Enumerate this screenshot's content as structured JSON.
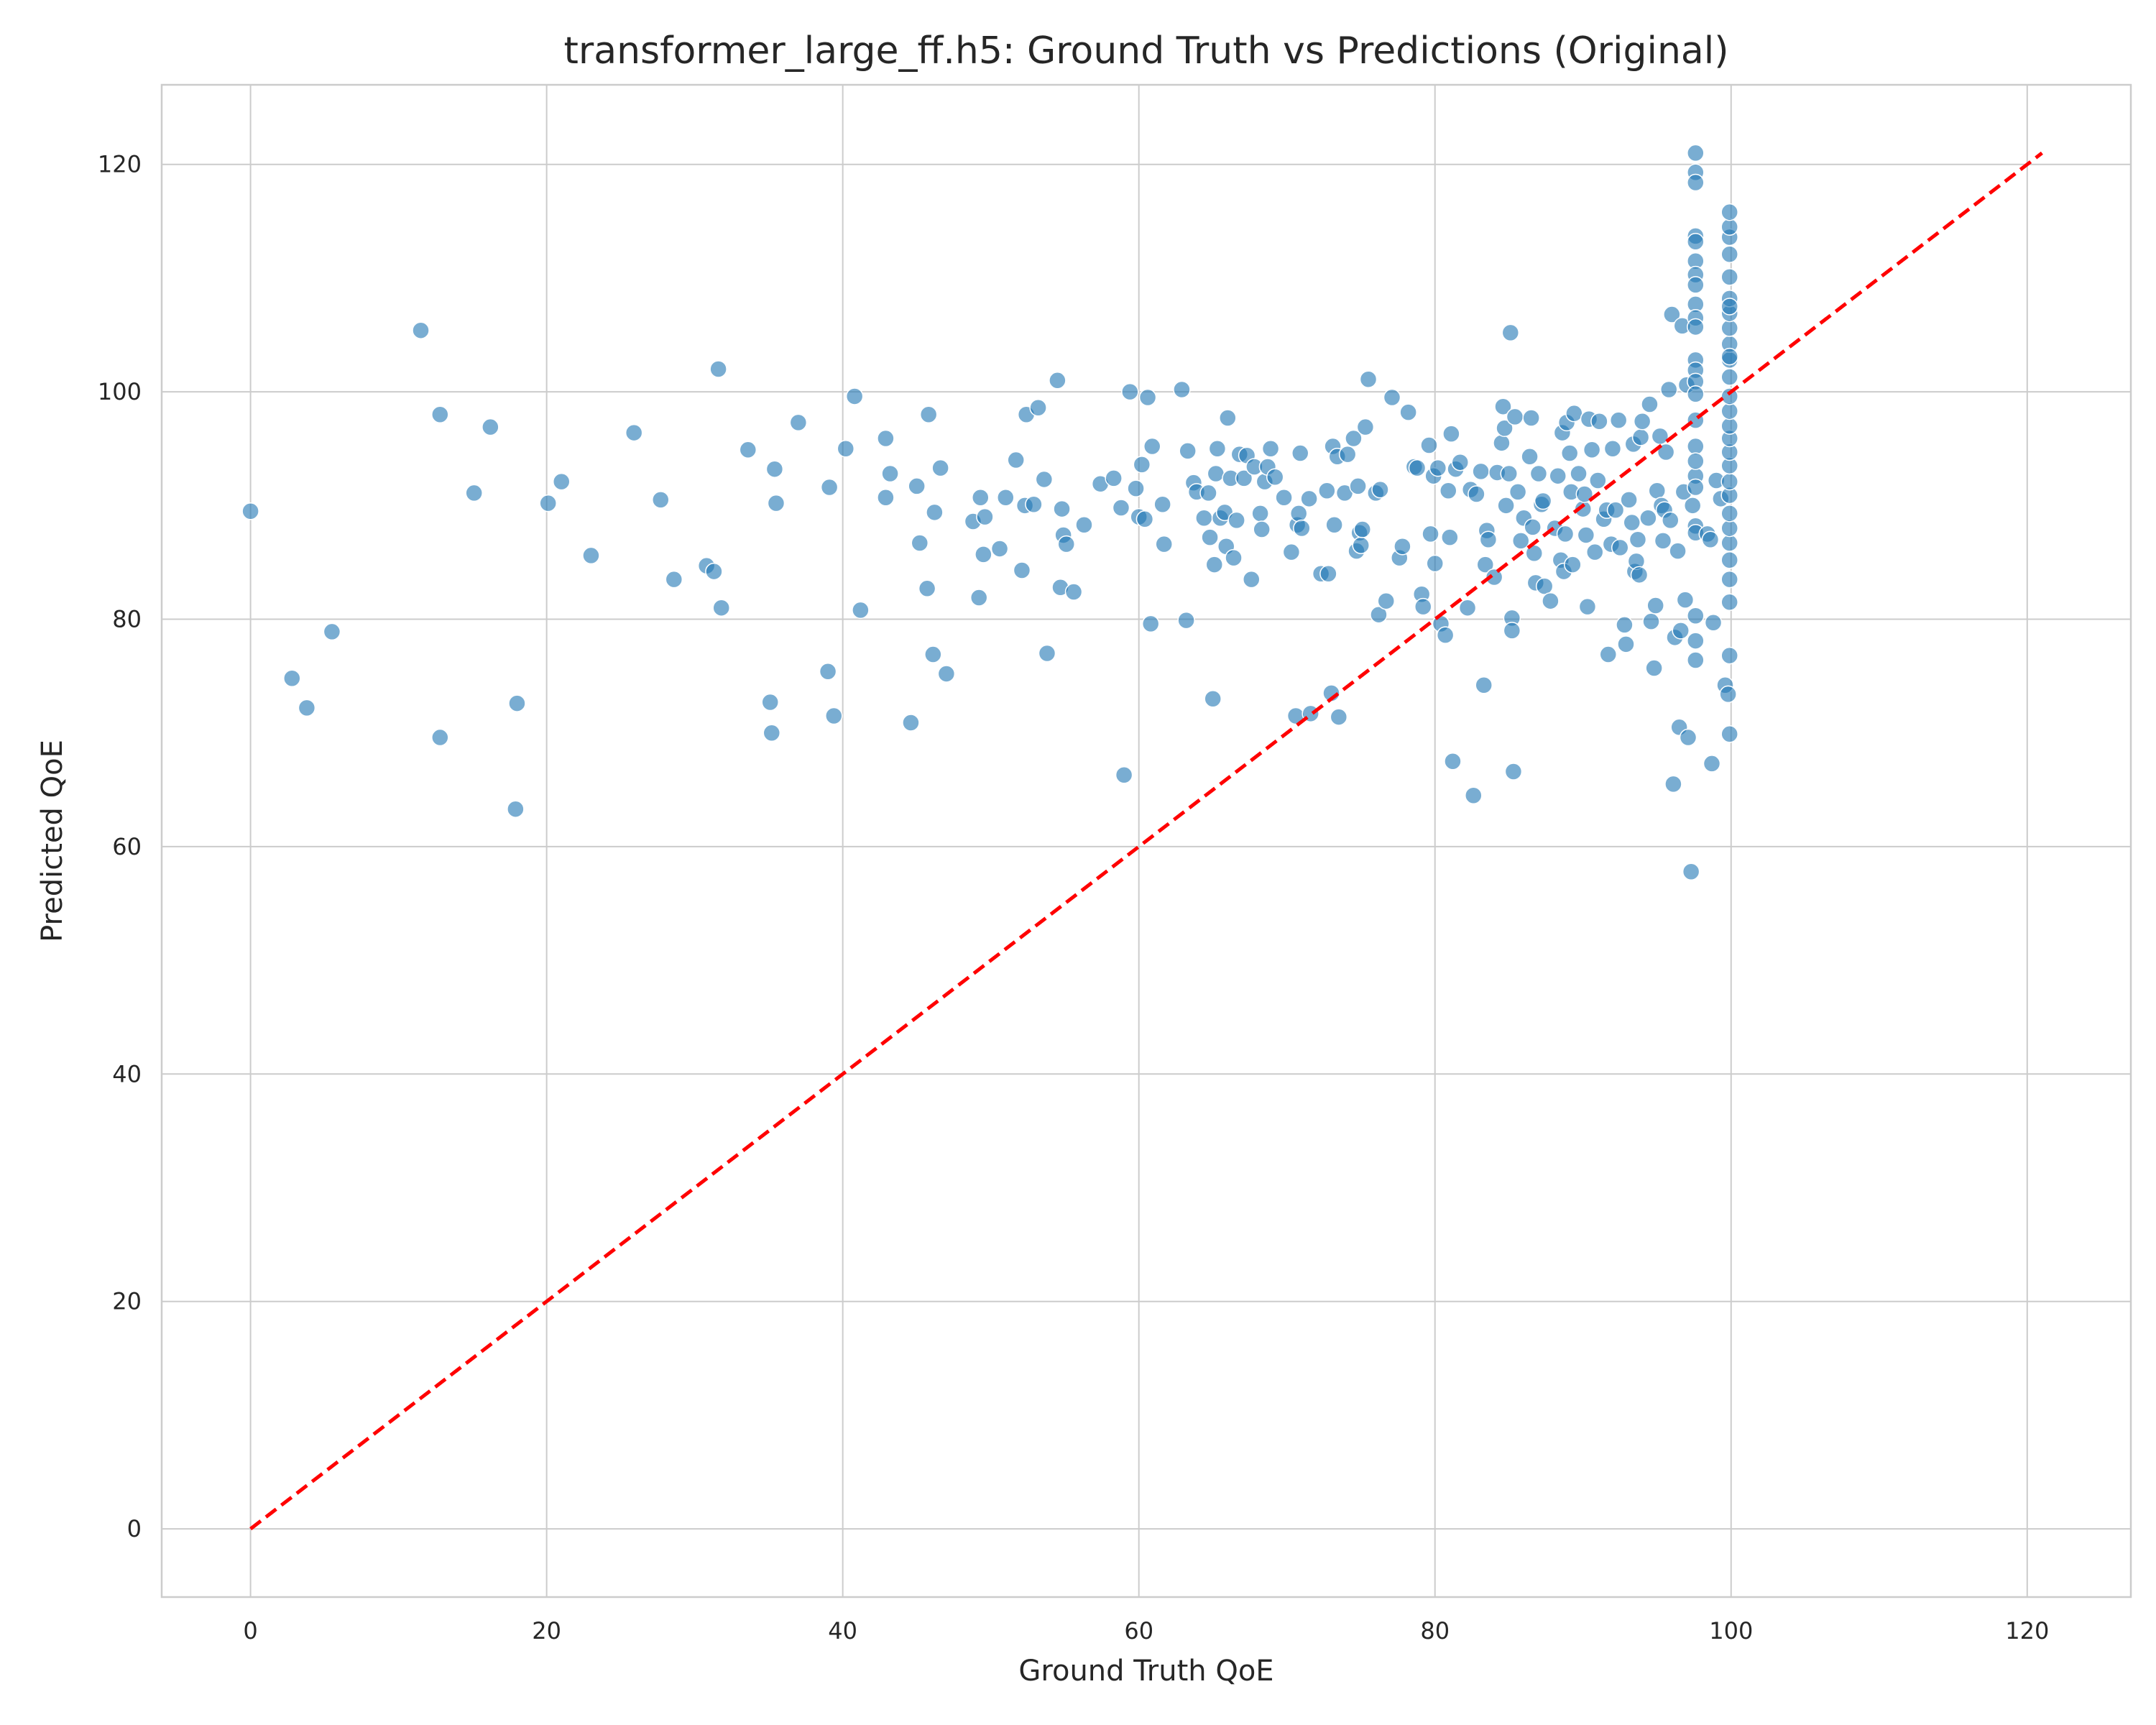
{
  "chart_data": {
    "type": "scatter",
    "title": "transformer_large_ff.h5: Ground Truth vs Predictions (Original)",
    "xlabel": "Ground Truth QoE",
    "ylabel": "Predicted QoE",
    "xlim": [
      -6,
      127
    ],
    "ylim": [
      -6,
      127
    ],
    "xticks": [
      0,
      20,
      40,
      60,
      80,
      100,
      120
    ],
    "yticks": [
      0,
      20,
      40,
      60,
      80,
      100,
      120
    ],
    "grid": true,
    "point_color": "#1f77b4",
    "reference_line": {
      "style": "dashed",
      "color": "#ff0000",
      "x": [
        0,
        121
      ],
      "y": [
        0,
        121
      ]
    },
    "points": [
      [
        0,
        89.5
      ],
      [
        2.8,
        74.8
      ],
      [
        3.8,
        72.2
      ],
      [
        5.5,
        78.9
      ],
      [
        11.5,
        105.4
      ],
      [
        12.8,
        98
      ],
      [
        12.8,
        69.6
      ],
      [
        15.1,
        91.1
      ],
      [
        16.2,
        96.9
      ],
      [
        17.9,
        63.3
      ],
      [
        18.0,
        72.6
      ],
      [
        20.1,
        90.2
      ],
      [
        21.0,
        92.1
      ],
      [
        23.0,
        85.6
      ],
      [
        25.9,
        96.4
      ],
      [
        27.7,
        90.5
      ],
      [
        28.6,
        83.5
      ],
      [
        30.8,
        84.7
      ],
      [
        31.3,
        84.2
      ],
      [
        31.6,
        102
      ],
      [
        31.8,
        81
      ],
      [
        33.6,
        94.9
      ],
      [
        35.1,
        72.7
      ],
      [
        35.2,
        70.0
      ],
      [
        35.4,
        93.2
      ],
      [
        35.5,
        90.2
      ],
      [
        37.0,
        97.3
      ],
      [
        39.0,
        75.4
      ],
      [
        39.1,
        91.6
      ],
      [
        39.4,
        71.5
      ],
      [
        40.2,
        95
      ],
      [
        40.8,
        99.6
      ],
      [
        41.2,
        80.8
      ],
      [
        42.9,
        95.9
      ],
      [
        42.9,
        90.7
      ],
      [
        43.2,
        92.8
      ],
      [
        44.6,
        70.9
      ],
      [
        45.0,
        91.7
      ],
      [
        45.2,
        86.7
      ],
      [
        45.7,
        82.7
      ],
      [
        45.8,
        98
      ],
      [
        46.1,
        76.9
      ],
      [
        46.2,
        89.4
      ],
      [
        46.6,
        93.3
      ],
      [
        47.0,
        75.2
      ],
      [
        48.8,
        88.6
      ],
      [
        49.2,
        81.9
      ],
      [
        49.3,
        90.7
      ],
      [
        49.5,
        85.7
      ],
      [
        49.6,
        89.0
      ],
      [
        50.6,
        86.2
      ],
      [
        51.0,
        90.7
      ],
      [
        51.7,
        94
      ],
      [
        52.1,
        84.3
      ],
      [
        52.3,
        90.0
      ],
      [
        52.4,
        98
      ],
      [
        52.9,
        90.1
      ],
      [
        53.2,
        98.6
      ],
      [
        53.6,
        92.3
      ],
      [
        53.8,
        77
      ],
      [
        54.5,
        101
      ],
      [
        54.7,
        82.8
      ],
      [
        54.8,
        89.7
      ],
      [
        54.9,
        87.4
      ],
      [
        55.1,
        86.6
      ],
      [
        55.6,
        82.4
      ],
      [
        56.3,
        88.3
      ],
      [
        57.4,
        91.9
      ],
      [
        58.3,
        92.4
      ],
      [
        58.8,
        89.8
      ],
      [
        59.0,
        66.3
      ],
      [
        59.4,
        100
      ],
      [
        59.8,
        91.5
      ],
      [
        60.0,
        89.0
      ],
      [
        60.2,
        93.6
      ],
      [
        60.4,
        88.8
      ],
      [
        60.6,
        99.5
      ],
      [
        60.8,
        79.6
      ],
      [
        60.9,
        95.2
      ],
      [
        61.6,
        90.1
      ],
      [
        61.7,
        86.6
      ],
      [
        62.9,
        100.2
      ],
      [
        63.2,
        79.9
      ],
      [
        63.3,
        94.8
      ],
      [
        63.7,
        92.0
      ],
      [
        63.9,
        91.2
      ],
      [
        64.4,
        88.9
      ],
      [
        64.7,
        91.1
      ],
      [
        64.8,
        87.2
      ],
      [
        65.0,
        73.0
      ],
      [
        65.1,
        84.8
      ],
      [
        65.2,
        92.8
      ],
      [
        65.3,
        95
      ],
      [
        65.5,
        88.9
      ],
      [
        65.8,
        89.4
      ],
      [
        65.9,
        86.4
      ],
      [
        66.0,
        97.7
      ],
      [
        66.2,
        92.4
      ],
      [
        66.4,
        85.4
      ],
      [
        66.6,
        88.7
      ],
      [
        66.8,
        94.5
      ],
      [
        67.1,
        92.4
      ],
      [
        67.3,
        94.4
      ],
      [
        67.6,
        83.5
      ],
      [
        67.8,
        93.4
      ],
      [
        68.2,
        89.3
      ],
      [
        68.3,
        87.9
      ],
      [
        68.5,
        92.1
      ],
      [
        68.7,
        93.4
      ],
      [
        68.9,
        95
      ],
      [
        69.2,
        92.5
      ],
      [
        69.8,
        90.7
      ],
      [
        70.3,
        85.9
      ],
      [
        70.6,
        71.5
      ],
      [
        70.7,
        88.3
      ],
      [
        70.8,
        89.3
      ],
      [
        70.9,
        94.6
      ],
      [
        71.0,
        88.0
      ],
      [
        71.5,
        90.6
      ],
      [
        71.6,
        71.7
      ],
      [
        72.3,
        84
      ],
      [
        72.7,
        91.3
      ],
      [
        72.8,
        84
      ],
      [
        73.0,
        73.5
      ],
      [
        73.1,
        95.2
      ],
      [
        73.2,
        88.3
      ],
      [
        73.4,
        94.3
      ],
      [
        73.5,
        71.4
      ],
      [
        73.9,
        91.1
      ],
      [
        74.1,
        94.5
      ],
      [
        74.5,
        95.9
      ],
      [
        74.7,
        86.0
      ],
      [
        74.8,
        91.7
      ],
      [
        74.9,
        87.6
      ],
      [
        75.0,
        86.5
      ],
      [
        75.1,
        87.9
      ],
      [
        75.3,
        96.9
      ],
      [
        75.5,
        101.1
      ],
      [
        76.0,
        91.1
      ],
      [
        76.2,
        80.4
      ],
      [
        76.3,
        91.4
      ],
      [
        76.7,
        81.6
      ],
      [
        77.1,
        99.5
      ],
      [
        77.6,
        85.4
      ],
      [
        77.8,
        86.4
      ],
      [
        78.2,
        98.2
      ],
      [
        78.6,
        93.4
      ],
      [
        78.8,
        93.3
      ],
      [
        79.1,
        82.2
      ],
      [
        79.2,
        81.1
      ],
      [
        79.6,
        95.3
      ],
      [
        79.7,
        87.5
      ],
      [
        79.9,
        92.6
      ],
      [
        80.0,
        84.9
      ],
      [
        80.2,
        93.3
      ],
      [
        80.4,
        79.6
      ],
      [
        80.7,
        78.6
      ],
      [
        80.9,
        91.3
      ],
      [
        81.0,
        87.2
      ],
      [
        81.1,
        96.3
      ],
      [
        81.2,
        67.5
      ],
      [
        81.4,
        93.2
      ],
      [
        81.7,
        93.8
      ],
      [
        82.2,
        81
      ],
      [
        82.4,
        91.4
      ],
      [
        82.6,
        64.5
      ],
      [
        82.8,
        91.0
      ],
      [
        83.1,
        93.0
      ],
      [
        83.3,
        74.2
      ],
      [
        83.4,
        84.8
      ],
      [
        83.5,
        87.8
      ],
      [
        83.6,
        87.0
      ],
      [
        84.0,
        83.7
      ],
      [
        84.2,
        92.9
      ],
      [
        84.5,
        95.5
      ],
      [
        84.6,
        98.7
      ],
      [
        84.7,
        96.8
      ],
      [
        84.8,
        90.0
      ],
      [
        85.0,
        92.8
      ],
      [
        85.1,
        105.2
      ],
      [
        85.2,
        80.1
      ],
      [
        85.2,
        79.0
      ],
      [
        85.3,
        66.6
      ],
      [
        85.4,
        97.8
      ],
      [
        85.6,
        91.2
      ],
      [
        85.8,
        86.9
      ],
      [
        86.0,
        88.9
      ],
      [
        86.4,
        94.3
      ],
      [
        86.5,
        97.7
      ],
      [
        86.6,
        88.1
      ],
      [
        86.7,
        85.8
      ],
      [
        86.8,
        83.2
      ],
      [
        87.0,
        92.8
      ],
      [
        87.2,
        90.1
      ],
      [
        87.3,
        90.4
      ],
      [
        87.4,
        82.9
      ],
      [
        87.8,
        81.6
      ],
      [
        88.1,
        88.0
      ],
      [
        88.3,
        92.6
      ],
      [
        88.5,
        85.2
      ],
      [
        88.6,
        96.4
      ],
      [
        88.7,
        84.2
      ],
      [
        88.8,
        87.5
      ],
      [
        88.9,
        97.3
      ],
      [
        89.1,
        94.6
      ],
      [
        89.2,
        91.2
      ],
      [
        89.3,
        84.8
      ],
      [
        89.4,
        98.1
      ],
      [
        89.7,
        92.8
      ],
      [
        90.0,
        89.7
      ],
      [
        90.1,
        91.0
      ],
      [
        90.2,
        87.4
      ],
      [
        90.3,
        81.1
      ],
      [
        90.4,
        97.6
      ],
      [
        90.6,
        94.9
      ],
      [
        90.8,
        85.9
      ],
      [
        91.0,
        92.2
      ],
      [
        91.1,
        97.4
      ],
      [
        91.4,
        88.8
      ],
      [
        91.6,
        89.6
      ],
      [
        91.7,
        76.9
      ],
      [
        91.9,
        86.6
      ],
      [
        92.0,
        95.0
      ],
      [
        92.2,
        89.6
      ],
      [
        92.4,
        97.5
      ],
      [
        92.5,
        86.3
      ],
      [
        92.8,
        79.5
      ],
      [
        92.9,
        77.8
      ],
      [
        93.1,
        90.5
      ],
      [
        93.3,
        88.5
      ],
      [
        93.4,
        95.4
      ],
      [
        93.5,
        84.2
      ],
      [
        93.6,
        85.1
      ],
      [
        93.7,
        87.0
      ],
      [
        93.8,
        83.9
      ],
      [
        93.9,
        96.0
      ],
      [
        94.0,
        97.4
      ],
      [
        94.4,
        88.9
      ],
      [
        94.5,
        98.9
      ],
      [
        94.6,
        79.8
      ],
      [
        94.8,
        75.7
      ],
      [
        94.9,
        81.2
      ],
      [
        95.0,
        91.3
      ],
      [
        95.2,
        96.1
      ],
      [
        95.3,
        90.0
      ],
      [
        95.4,
        86.9
      ],
      [
        95.5,
        89.6
      ],
      [
        95.6,
        94.7
      ],
      [
        95.8,
        100.2
      ],
      [
        95.9,
        88.7
      ],
      [
        96.0,
        106.8
      ],
      [
        96.1,
        65.5
      ],
      [
        96.2,
        78.4
      ],
      [
        96.4,
        86.0
      ],
      [
        96.5,
        70.5
      ],
      [
        96.6,
        79.0
      ],
      [
        96.7,
        105.8
      ],
      [
        96.8,
        91.2
      ],
      [
        96.9,
        81.7
      ],
      [
        97.0,
        100.6
      ],
      [
        97.1,
        69.6
      ],
      [
        97.3,
        57.8
      ],
      [
        97.4,
        90.0
      ],
      [
        97.6,
        92.6
      ],
      [
        97.6,
        97.5
      ],
      [
        97.6,
        121
      ],
      [
        97.6,
        119.3
      ],
      [
        97.6,
        118.4
      ],
      [
        97.6,
        113.7
      ],
      [
        97.6,
        113.2
      ],
      [
        97.6,
        111.5
      ],
      [
        97.6,
        110.3
      ],
      [
        97.6,
        109.4
      ],
      [
        97.6,
        107.7
      ],
      [
        97.6,
        106.5
      ],
      [
        97.6,
        105.7
      ],
      [
        97.6,
        102.8
      ],
      [
        97.6,
        101.9
      ],
      [
        97.6,
        100.9
      ],
      [
        97.6,
        99.8
      ],
      [
        97.6,
        95.2
      ],
      [
        97.6,
        93.9
      ],
      [
        97.6,
        91.6
      ],
      [
        97.6,
        88.2
      ],
      [
        97.6,
        87.6
      ],
      [
        97.6,
        80.3
      ],
      [
        97.6,
        78.1
      ],
      [
        97.6,
        76.4
      ],
      [
        98.4,
        87.5
      ],
      [
        98.6,
        87.0
      ],
      [
        98.7,
        67.3
      ],
      [
        98.8,
        79.7
      ],
      [
        99.0,
        92.2
      ],
      [
        99.3,
        90.6
      ],
      [
        99.6,
        74.2
      ],
      [
        99.8,
        73.4
      ],
      [
        99.9,
        69.9
      ],
      [
        99.9,
        76.8
      ],
      [
        99.9,
        81.5
      ],
      [
        99.9,
        83.5
      ],
      [
        99.9,
        85.2
      ],
      [
        99.9,
        86.7
      ],
      [
        99.9,
        88.0
      ],
      [
        99.9,
        89.3
      ],
      [
        99.9,
        90.9
      ],
      [
        99.9,
        92.1
      ],
      [
        99.9,
        93.5
      ],
      [
        99.9,
        94.7
      ],
      [
        99.9,
        95.9
      ],
      [
        99.9,
        97.0
      ],
      [
        99.9,
        98.3
      ],
      [
        99.9,
        99.6
      ],
      [
        99.9,
        101.3
      ],
      [
        99.9,
        102.8
      ],
      [
        99.9,
        104.2
      ],
      [
        99.9,
        105.6
      ],
      [
        99.9,
        106.9
      ],
      [
        99.9,
        108.2
      ],
      [
        99.9,
        110.1
      ],
      [
        99.9,
        112.1
      ],
      [
        99.9,
        113.6
      ],
      [
        99.9,
        114.5
      ],
      [
        99.9,
        115.8
      ],
      [
        99.9,
        107.5
      ],
      [
        99.9,
        103.1
      ]
    ]
  }
}
